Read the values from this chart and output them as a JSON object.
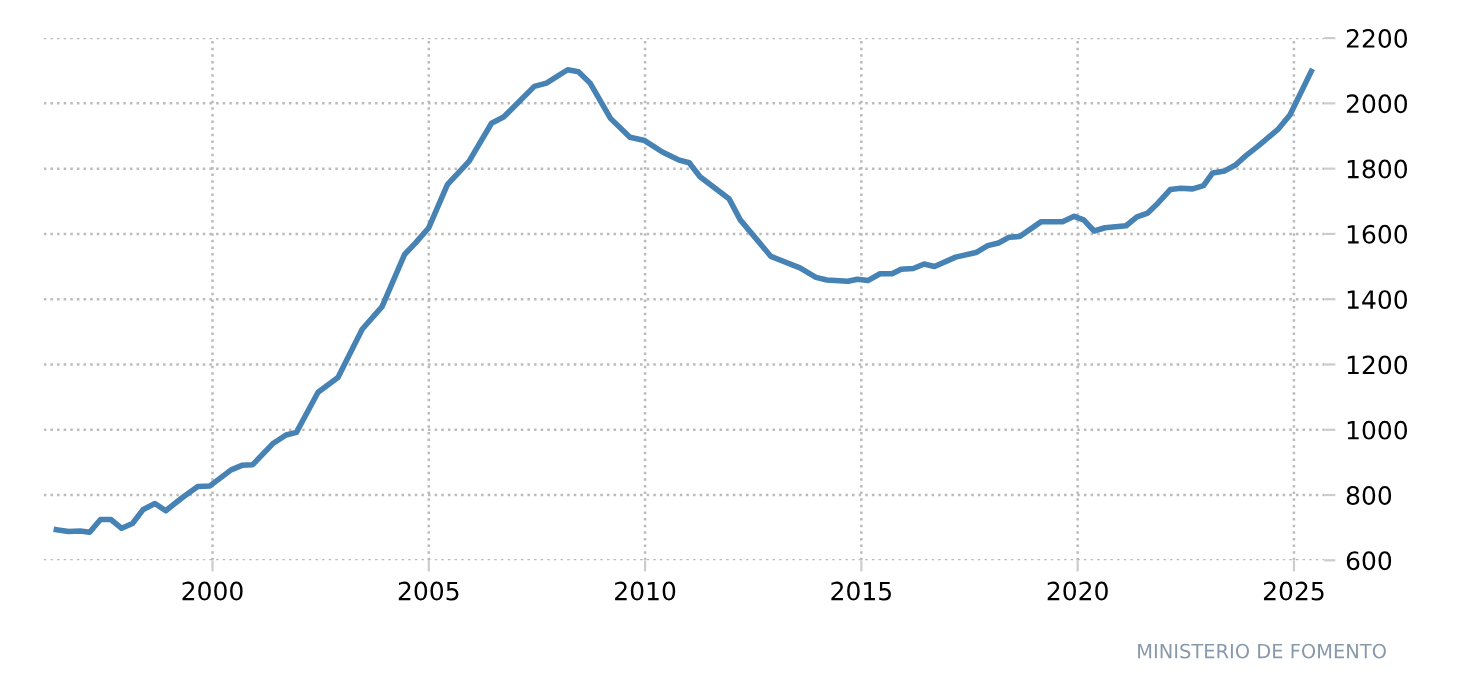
{
  "chart_data": {
    "type": "line",
    "x": [
      1996.39,
      1996.67,
      1996.94,
      1997.16,
      1997.41,
      1997.65,
      1997.9,
      1998.15,
      1998.4,
      1998.67,
      1998.92,
      1999.29,
      1999.66,
      1999.94,
      2000.43,
      2000.68,
      2000.93,
      2001.39,
      2001.7,
      2001.94,
      2002.44,
      2002.9,
      2003.46,
      2003.92,
      2004.44,
      2004.69,
      2005.0,
      2005.43,
      2005.93,
      2006.45,
      2006.73,
      2007.44,
      2007.72,
      2008.21,
      2008.46,
      2008.73,
      2009.2,
      2009.65,
      2009.99,
      2010.4,
      2010.77,
      2011.02,
      2011.27,
      2011.94,
      2012.2,
      2012.91,
      2013.58,
      2013.95,
      2014.2,
      2014.69,
      2014.91,
      2015.15,
      2015.43,
      2015.71,
      2015.92,
      2016.2,
      2016.45,
      2016.69,
      2017.18,
      2017.65,
      2017.92,
      2018.17,
      2018.42,
      2018.66,
      2019.15,
      2019.65,
      2019.92,
      2020.14,
      2020.38,
      2020.63,
      2021.12,
      2021.37,
      2021.62,
      2021.86,
      2022.14,
      2022.38,
      2022.66,
      2022.91,
      2023.12,
      2023.4,
      2023.65,
      2023.89,
      2024.17,
      2024.63,
      2024.91,
      2025.4
    ],
    "series": [
      {
        "color": "#4682b4",
        "values": [
          694,
          688,
          690,
          686,
          725,
          725,
          698,
          713,
          756,
          774,
          752,
          791,
          826,
          828,
          877,
          891,
          893,
          957,
          984,
          992,
          1115,
          1160,
          1308,
          1377,
          1537,
          1572,
          1619,
          1751,
          1822,
          1939,
          1958,
          2052,
          2062,
          2103,
          2097,
          2062,
          1954,
          1896,
          1886,
          1851,
          1827,
          1818,
          1775,
          1708,
          1643,
          1531,
          1496,
          1467,
          1459,
          1455,
          1461,
          1457,
          1478,
          1478,
          1492,
          1494,
          1508,
          1500,
          1529,
          1543,
          1564,
          1572,
          1590,
          1592,
          1637,
          1637,
          1654,
          1643,
          1609,
          1619,
          1625,
          1652,
          1664,
          1695,
          1736,
          1740,
          1738,
          1748,
          1787,
          1793,
          1811,
          1840,
          1869,
          1920,
          1965,
          2098
        ]
      }
    ],
    "xlim": [
      1996.1,
      2025.7
    ],
    "ylim": [
      600,
      2200
    ],
    "xticks": [
      2000,
      2005,
      2010,
      2015,
      2020,
      2025
    ],
    "yticks": [
      600,
      800,
      1000,
      1200,
      1400,
      1600,
      1800,
      2000,
      2200
    ],
    "grid": true,
    "line_style": "solid",
    "annotations": [
      "MINISTERIO DE FOMENTO"
    ]
  }
}
